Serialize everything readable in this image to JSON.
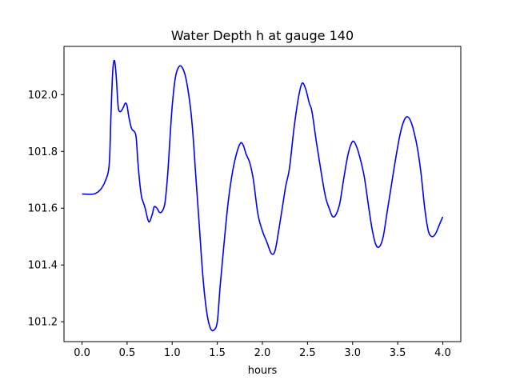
{
  "chart_data": {
    "type": "line",
    "title": "Water Depth h at gauge 140",
    "xlabel": "hours",
    "ylabel": "",
    "xlim": [
      -0.2,
      4.2
    ],
    "ylim": [
      101.13,
      102.17
    ],
    "xticks": [
      "0.0",
      "0.5",
      "1.0",
      "1.5",
      "2.0",
      "2.5",
      "3.0",
      "3.5",
      "4.0"
    ],
    "yticks": [
      "101.2",
      "101.4",
      "101.6",
      "101.8",
      "102.0"
    ],
    "grid": false,
    "series": [
      {
        "color": "#0000ff",
        "x": [
          0.0,
          0.1,
          0.15,
          0.2,
          0.25,
          0.3,
          0.32,
          0.34,
          0.36,
          0.38,
          0.4,
          0.42,
          0.45,
          0.48,
          0.5,
          0.52,
          0.55,
          0.58,
          0.6,
          0.62,
          0.64,
          0.66,
          0.68,
          0.7,
          0.73,
          0.75,
          0.78,
          0.8,
          0.83,
          0.86,
          0.89,
          0.92,
          0.95,
          0.98,
          1.0,
          1.03,
          1.06,
          1.1,
          1.15,
          1.2,
          1.23,
          1.26,
          1.3,
          1.34,
          1.38,
          1.42,
          1.46,
          1.5,
          1.53,
          1.57,
          1.62,
          1.67,
          1.72,
          1.76,
          1.79,
          1.82,
          1.86,
          1.9,
          1.95,
          2.0,
          2.05,
          2.1,
          2.14,
          2.18,
          2.22,
          2.26,
          2.3,
          2.35,
          2.4,
          2.44,
          2.48,
          2.52,
          2.55,
          2.6,
          2.65,
          2.7,
          2.74,
          2.78,
          2.82,
          2.86,
          2.9,
          2.95,
          3.0,
          3.04,
          3.08,
          3.13,
          3.18,
          3.22,
          3.26,
          3.3,
          3.34,
          3.38,
          3.42,
          3.47,
          3.52,
          3.56,
          3.6,
          3.64,
          3.68,
          3.72,
          3.76,
          3.8,
          3.84,
          3.88,
          3.92,
          3.96,
          4.0
        ],
        "y": [
          101.65,
          101.649,
          101.652,
          101.664,
          101.69,
          101.75,
          101.92,
          102.08,
          102.12,
          102.06,
          101.96,
          101.94,
          101.95,
          101.97,
          101.96,
          101.92,
          101.88,
          101.87,
          101.85,
          101.76,
          101.69,
          101.64,
          101.62,
          101.6,
          101.56,
          101.553,
          101.58,
          101.605,
          101.6,
          101.585,
          101.59,
          101.62,
          101.72,
          101.87,
          101.96,
          102.05,
          102.09,
          102.1,
          102.06,
          101.96,
          101.86,
          101.72,
          101.54,
          101.36,
          101.24,
          101.18,
          101.17,
          101.2,
          101.32,
          101.46,
          101.62,
          101.73,
          101.8,
          101.83,
          101.82,
          101.79,
          101.76,
          101.7,
          101.58,
          101.52,
          101.48,
          101.44,
          101.45,
          101.52,
          101.6,
          101.68,
          101.74,
          101.88,
          101.99,
          102.04,
          102.02,
          101.97,
          101.94,
          101.83,
          101.73,
          101.64,
          101.6,
          101.57,
          101.58,
          101.62,
          101.7,
          101.79,
          101.835,
          101.82,
          101.78,
          101.71,
          101.6,
          101.52,
          101.47,
          101.465,
          101.5,
          101.58,
          101.66,
          101.76,
          101.85,
          101.9,
          101.922,
          101.91,
          101.87,
          101.81,
          101.72,
          101.6,
          101.52,
          101.5,
          101.51,
          101.54,
          101.57
        ]
      }
    ]
  }
}
